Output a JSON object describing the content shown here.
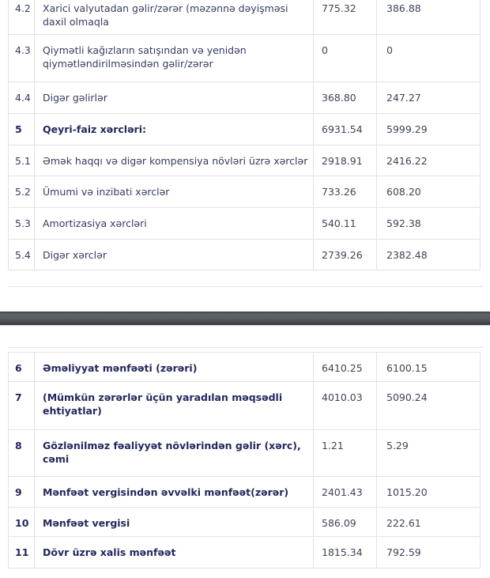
{
  "colors": {
    "text_regular": "#363c5f",
    "text_bold": "#23285c",
    "number_text": "#3e4457",
    "table_border": "#e2e2e2",
    "divider_dark": "#4a4d51",
    "background": "#ffffff"
  },
  "income_statement": {
    "section_expenses": {
      "rows": [
        {
          "num": "4.2",
          "label": "Xarici valyutadan gəlir/zərər (məzənnə dəyişməsi daxil olmaqla",
          "value1": "775.32",
          "value2": "386.88",
          "bold": false
        },
        {
          "num": "4.3",
          "label": "Qiymətli kağızların satışından və yenidən qiymətləndirilməsindən gəlir/zərər",
          "value1": "0",
          "value2": "0",
          "bold": false
        },
        {
          "num": "4.4",
          "label": "Digər gəlirlər",
          "value1": "368.80",
          "value2": "247.27",
          "bold": false
        },
        {
          "num": "5",
          "label": "Qeyri-faiz xərcləri:",
          "value1": "6931.54",
          "value2": "5999.29",
          "bold": true
        },
        {
          "num": "5.1",
          "label": "Əmək haqqı və digər kompensiya növləri üzrə xərclər",
          "value1": "2918.91",
          "value2": "2416.22",
          "bold": false
        },
        {
          "num": "5.2",
          "label": "Ümumi və inzibati xərclər",
          "value1": "733.26",
          "value2": "608.20",
          "bold": false
        },
        {
          "num": "5.3",
          "label": "Amortizasiya xərcləri",
          "value1": "540.11",
          "value2": "592.38",
          "bold": false
        },
        {
          "num": "5.4",
          "label": "Digər xərclər",
          "value1": "2739.26",
          "value2": "2382.48",
          "bold": false
        }
      ]
    },
    "section_profit": {
      "rows": [
        {
          "num": "6",
          "label": "Əməliyyat mənfəəti (zərəri)",
          "value1": "6410.25",
          "value2": "6100.15",
          "bold": true
        },
        {
          "num": "7",
          "label": "(Mümkün zərərlər üçün yaradılan məqsədli ehtiyatlar)",
          "value1": "4010.03",
          "value2": "5090.24",
          "bold": true
        },
        {
          "num": "8",
          "label": "Gözlənilməz fəaliyyət növlərindən gəlir (xərc), cəmi",
          "value1": "1.21",
          "value2": "5.29",
          "bold": true
        },
        {
          "num": "9",
          "label": "Mənfəət vergisindən əvvəlki mənfəət(zərər)",
          "value1": "2401.43",
          "value2": "1015.20",
          "bold": true
        },
        {
          "num": "10",
          "label": "Mənfəət vergisi",
          "value1": "586.09",
          "value2": "222.61",
          "bold": true
        },
        {
          "num": "11",
          "label": "Dövr üzrə xalis mənfəət",
          "value1": "1815.34",
          "value2": "792.59",
          "bold": true
        }
      ]
    }
  }
}
